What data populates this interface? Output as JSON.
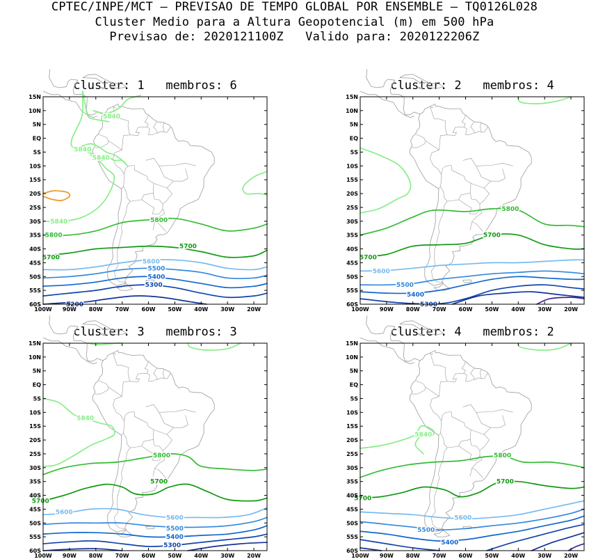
{
  "header": {
    "line1": "CPTEC/INPE/MCT – PREVISAO DE TEMPO GLOBAL POR ENSEMBLE – TQ0126L028",
    "line2": "Cluster Medio para a Altura Geopotencial (m) em 500 hPa",
    "line3": "Previsao de: 2020121100Z   Valido para: 2020122206Z"
  },
  "axes": {
    "lat_labels": [
      "15N",
      "10N",
      "5N",
      "EQ",
      "5S",
      "10S",
      "15S",
      "20S",
      "25S",
      "30S",
      "35S",
      "40S",
      "45S",
      "50S",
      "55S",
      "60S"
    ],
    "lon_labels": [
      "100W",
      "90W",
      "80W",
      "70W",
      "60W",
      "50W",
      "40W",
      "30W",
      "20W"
    ]
  },
  "colors": {
    "c5840": "#88ee88",
    "c5800": "#33bb33",
    "c5700": "#119911",
    "c5600": "#77bbee",
    "c5500": "#3388dd",
    "c5400": "#1166cc",
    "c5300": "#1144aa",
    "c5200": "#113399",
    "c5100": "#442299",
    "c5860": "#ee9922",
    "coast": "#9a9a9a"
  },
  "panels": [
    {
      "title": "cluster: 1   membros: 6",
      "labels": [
        {
          "text": "5840",
          "color": "c5840",
          "lon": -74,
          "lat": 8
        },
        {
          "text": "5840",
          "color": "c5840",
          "lon": -85,
          "lat": -4
        },
        {
          "text": "5840",
          "color": "c5840",
          "lon": -78,
          "lat": -7
        },
        {
          "text": "5840",
          "color": "c5840",
          "lon": -94,
          "lat": -30
        },
        {
          "text": "5800",
          "color": "c5800",
          "lon": -96,
          "lat": -35
        },
        {
          "text": "5800",
          "color": "c5800",
          "lon": -56,
          "lat": -29.5
        },
        {
          "text": "5700",
          "color": "c5700",
          "lon": -97,
          "lat": -43
        },
        {
          "text": "5700",
          "color": "c5700",
          "lon": -45,
          "lat": -39
        },
        {
          "text": "5600",
          "color": "c5600",
          "lon": -59,
          "lat": -44.5
        },
        {
          "text": "5500",
          "color": "c5500",
          "lon": -57,
          "lat": -47
        },
        {
          "text": "5400",
          "color": "c5400",
          "lon": -57,
          "lat": -50
        },
        {
          "text": "5300",
          "color": "c5300",
          "lon": -58,
          "lat": -53
        },
        {
          "text": "5200",
          "color": "c5200",
          "lon": -88,
          "lat": -60
        }
      ]
    },
    {
      "title": "cluster: 2   membros: 4",
      "labels": [
        {
          "text": "5800",
          "color": "c5800",
          "lon": -43,
          "lat": -25.5
        },
        {
          "text": "5700",
          "color": "c5700",
          "lon": -50,
          "lat": -35
        },
        {
          "text": "5700",
          "color": "c5700",
          "lon": -97,
          "lat": -43
        },
        {
          "text": "5600",
          "color": "c5600",
          "lon": -92,
          "lat": -48
        },
        {
          "text": "5500",
          "color": "c5500",
          "lon": -83,
          "lat": -53
        },
        {
          "text": "5400",
          "color": "c5400",
          "lon": -79,
          "lat": -56.5
        },
        {
          "text": "5300",
          "color": "c5300",
          "lon": -74,
          "lat": -60
        }
      ]
    },
    {
      "title": "cluster: 3   membros: 3",
      "labels": [
        {
          "text": "5840",
          "color": "c5840",
          "lon": -84,
          "lat": -12
        },
        {
          "text": "5800",
          "color": "c5800",
          "lon": -55,
          "lat": -25.5
        },
        {
          "text": "5700",
          "color": "c5700",
          "lon": -56,
          "lat": -35
        },
        {
          "text": "5700",
          "color": "c5700",
          "lon": -101,
          "lat": -42
        },
        {
          "text": "5600",
          "color": "c5600",
          "lon": -92,
          "lat": -46
        },
        {
          "text": "5600",
          "color": "c5600",
          "lon": -50,
          "lat": -48
        },
        {
          "text": "5500",
          "color": "c5500",
          "lon": -50,
          "lat": -52
        },
        {
          "text": "5400",
          "color": "c5400",
          "lon": -50,
          "lat": -55
        },
        {
          "text": "5300",
          "color": "c5300",
          "lon": -51,
          "lat": -58
        }
      ]
    },
    {
      "title": "cluster: 4   membros: 2",
      "labels": [
        {
          "text": "5840",
          "color": "c5840",
          "lon": -76,
          "lat": -18
        },
        {
          "text": "5800",
          "color": "c5800",
          "lon": -46,
          "lat": -25.5
        },
        {
          "text": "5700",
          "color": "c5700",
          "lon": -45,
          "lat": -35
        },
        {
          "text": "5700",
          "color": "c5700",
          "lon": -99,
          "lat": -41
        },
        {
          "text": "5600",
          "color": "c5600",
          "lon": -61,
          "lat": -48
        },
        {
          "text": "5500",
          "color": "c5500",
          "lon": -75,
          "lat": -52.5
        },
        {
          "text": "5400",
          "color": "c5400",
          "lon": -66,
          "lat": -57
        }
      ]
    }
  ]
}
